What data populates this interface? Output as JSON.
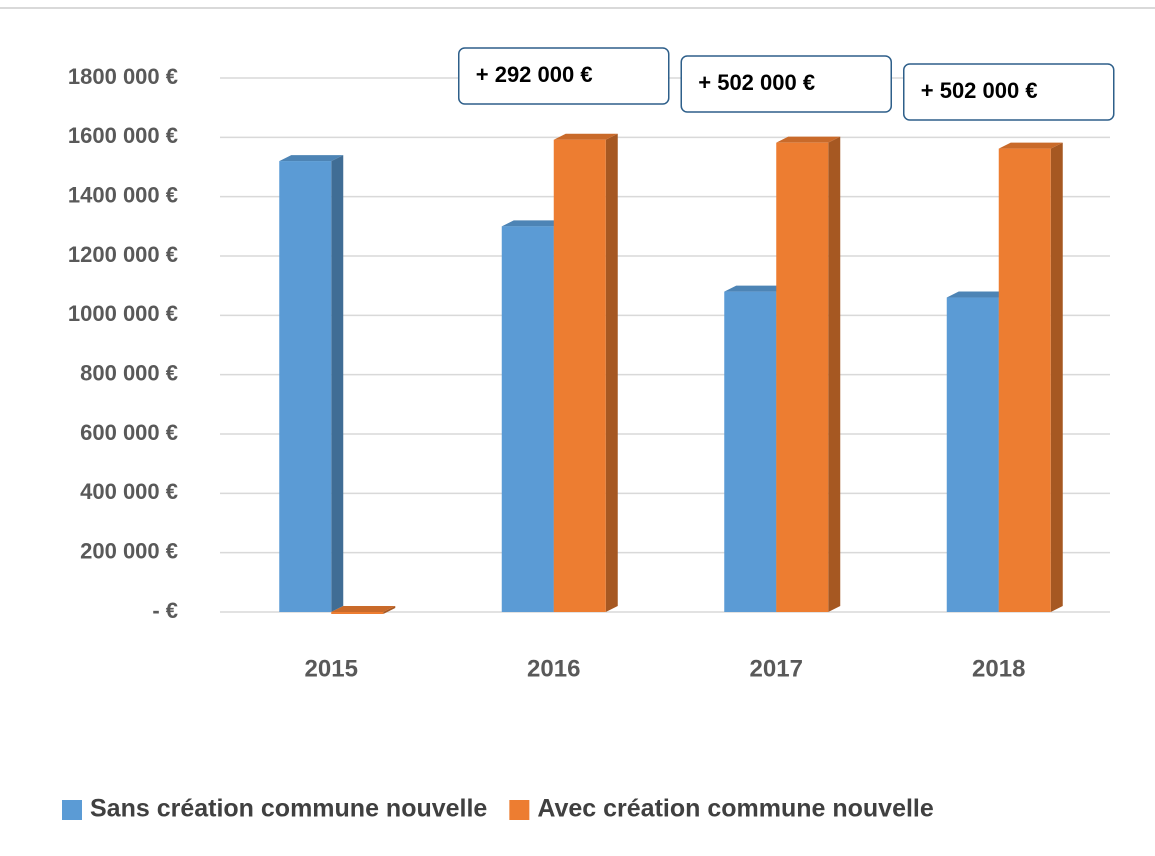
{
  "chart_data": {
    "type": "bar",
    "categories": [
      "2015",
      "2016",
      "2017",
      "2018"
    ],
    "series": [
      {
        "name": "Sans création commune nouvelle",
        "color": "#5b9bd5",
        "values": [
          1520000,
          1300000,
          1080000,
          1060000
        ]
      },
      {
        "name": "Avec création commune nouvelle",
        "color": "#ed7d31",
        "values": [
          0,
          1592000,
          1582000,
          1562000
        ]
      }
    ],
    "ylim": [
      0,
      1800000
    ],
    "yticks": [
      {
        "value": 0,
        "label": "-   €"
      },
      {
        "value": 200000,
        "label": "200 000 €"
      },
      {
        "value": 400000,
        "label": "400 000 €"
      },
      {
        "value": 600000,
        "label": "600 000 €"
      },
      {
        "value": 800000,
        "label": "800 000 €"
      },
      {
        "value": 1000000,
        "label": "1000 000 €"
      },
      {
        "value": 1200000,
        "label": "1200 000 €"
      },
      {
        "value": 1400000,
        "label": "1400 000 €"
      },
      {
        "value": 1600000,
        "label": "1600 000 €"
      },
      {
        "value": 1800000,
        "label": "1800 000 €"
      }
    ],
    "grid": true,
    "annotations": [
      "+ 292 000 €",
      "+ 502 000 €",
      "+ 502 000 €"
    ],
    "legend": "bottom"
  }
}
